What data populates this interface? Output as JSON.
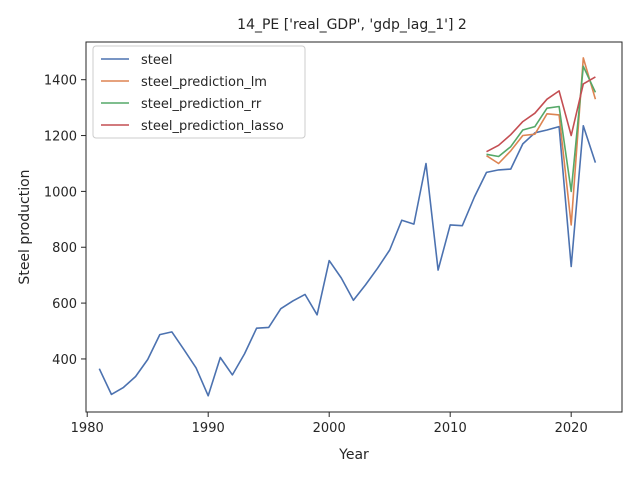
{
  "chart_data": {
    "type": "line",
    "title": "14_PE ['real_GDP', 'gdp_lag_1'] 2",
    "xlabel": "Year",
    "ylabel": "Steel production",
    "xlim": [
      1979.9,
      2024.2
    ],
    "ylim": [
      210,
      1535
    ],
    "xticks": [
      1980,
      1990,
      2000,
      2010,
      2020
    ],
    "yticks": [
      400,
      600,
      800,
      1000,
      1200,
      1400
    ],
    "grid": false,
    "legend": "upper-left",
    "series": [
      {
        "name": "steel",
        "color": "#4c72b0",
        "x": [
          1981,
          1982,
          1983,
          1984,
          1985,
          1986,
          1987,
          1988,
          1989,
          1990,
          1991,
          1992,
          1993,
          1994,
          1995,
          1996,
          1997,
          1998,
          1999,
          2000,
          2001,
          2002,
          2003,
          2004,
          2005,
          2006,
          2007,
          2008,
          2009,
          2010,
          2011,
          2012,
          2013,
          2014,
          2015,
          2016,
          2017,
          2018,
          2019,
          2020,
          2021,
          2022
        ],
        "y": [
          365,
          273,
          298,
          337,
          398,
          487,
          497,
          433,
          368,
          268,
          405,
          343,
          418,
          510,
          513,
          580,
          608,
          631,
          558,
          752,
          690,
          610,
          665,
          725,
          790,
          897,
          883,
          1100,
          718,
          880,
          877,
          980,
          1068,
          1077,
          1080,
          1170,
          1210,
          1220,
          1232,
          731,
          1235,
          1103
        ]
      },
      {
        "name": "steel_prediction_lm",
        "color": "#dd8452",
        "x": [
          2013,
          2014,
          2015,
          2016,
          2017,
          2018,
          2019,
          2020,
          2021,
          2022
        ],
        "y": [
          1128,
          1100,
          1145,
          1200,
          1205,
          1278,
          1274,
          880,
          1478,
          1330
        ]
      },
      {
        "name": "steel_prediction_rr",
        "color": "#55a868",
        "x": [
          2013,
          2014,
          2015,
          2016,
          2017,
          2018,
          2019,
          2020,
          2021,
          2022
        ],
        "y": [
          1133,
          1125,
          1160,
          1220,
          1232,
          1298,
          1304,
          1000,
          1448,
          1355
        ]
      },
      {
        "name": "steel_prediction_lasso",
        "color": "#c44e52",
        "x": [
          2013,
          2014,
          2015,
          2016,
          2017,
          2018,
          2019,
          2020,
          2021,
          2022
        ],
        "y": [
          1142,
          1165,
          1203,
          1250,
          1280,
          1330,
          1360,
          1200,
          1385,
          1410
        ]
      }
    ]
  }
}
